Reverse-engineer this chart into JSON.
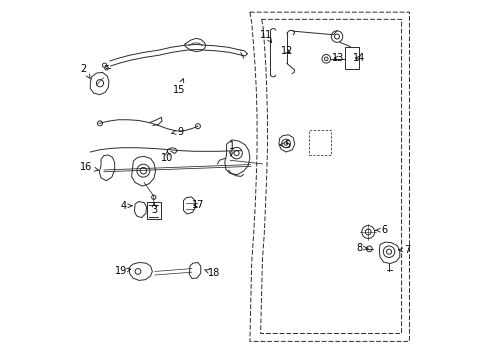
{
  "bg_color": "#ffffff",
  "line_color": "#2a2a2a",
  "fig_width": 4.89,
  "fig_height": 3.6,
  "dpi": 100,
  "label_fs": 7.0,
  "label_positions": {
    "1": [
      0.465,
      0.595,
      0.462,
      0.565
    ],
    "2": [
      0.052,
      0.81,
      0.075,
      0.775
    ],
    "3": [
      0.248,
      0.415,
      0.248,
      0.438
    ],
    "4": [
      0.162,
      0.428,
      0.188,
      0.428
    ],
    "5": [
      0.618,
      0.598,
      0.596,
      0.598
    ],
    "6": [
      0.89,
      0.36,
      0.865,
      0.36
    ],
    "7": [
      0.955,
      0.305,
      0.928,
      0.305
    ],
    "8": [
      0.82,
      0.31,
      0.845,
      0.31
    ],
    "9": [
      0.32,
      0.635,
      0.295,
      0.63
    ],
    "10": [
      0.285,
      0.56,
      0.285,
      0.583
    ],
    "11": [
      0.56,
      0.905,
      0.577,
      0.882
    ],
    "12": [
      0.618,
      0.86,
      0.636,
      0.85
    ],
    "13": [
      0.762,
      0.84,
      0.74,
      0.84
    ],
    "14": [
      0.82,
      0.84,
      0.8,
      0.84
    ],
    "15": [
      0.318,
      0.75,
      0.33,
      0.785
    ],
    "16": [
      0.058,
      0.535,
      0.095,
      0.527
    ],
    "17": [
      0.37,
      0.43,
      0.348,
      0.43
    ],
    "18": [
      0.415,
      0.24,
      0.388,
      0.25
    ],
    "19": [
      0.155,
      0.245,
      0.185,
      0.252
    ]
  }
}
